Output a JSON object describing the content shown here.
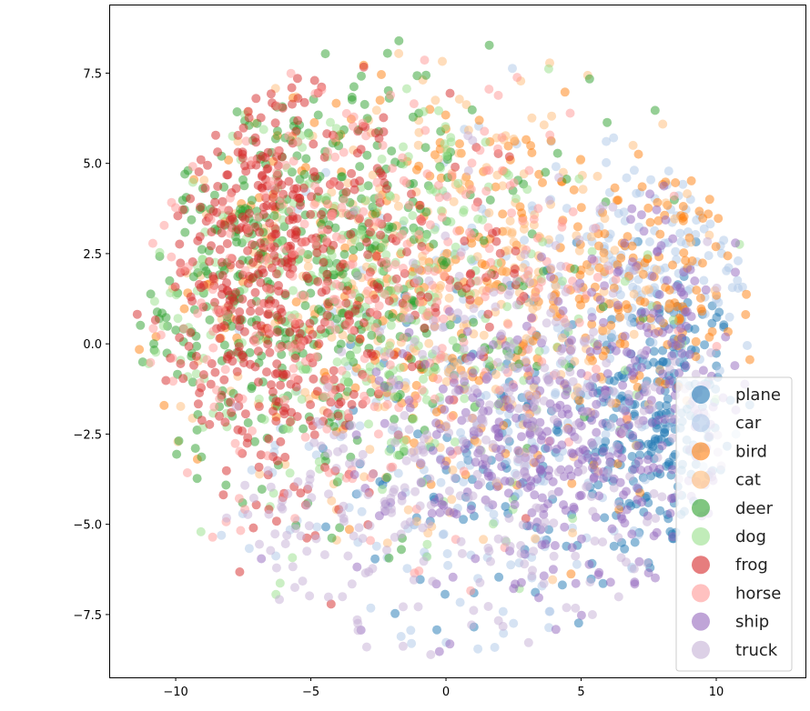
{
  "chart_data": {
    "type": "scatter",
    "title": "",
    "xlabel": "",
    "ylabel": "",
    "xlim": [
      -12.46,
      13.3
    ],
    "ylim": [
      -9.24,
      9.4
    ],
    "xticks": [
      -10,
      -5,
      0,
      5,
      10
    ],
    "xtick_labels": [
      "−10",
      "−5",
      "0",
      "5",
      "10"
    ],
    "yticks": [
      -7.5,
      -5.0,
      -2.5,
      0.0,
      2.5,
      5.0,
      7.5
    ],
    "ytick_labels": [
      "−7.5",
      "−5.0",
      "−2.5",
      "0.0",
      "2.5",
      "5.0",
      "7.5"
    ],
    "grid": false,
    "legend_position": "lower-right",
    "marker_alpha": 0.5,
    "note": "Point cloud is summarized per class as Gaussian clusters [center_x, center_y, spread_x, spread_y, count] in data units, bounded by an ellipse of radii [11.5, 8.8]",
    "bound_radii": [
      11.5,
      8.8
    ],
    "series": [
      {
        "name": "plane",
        "color": "#1f77b4",
        "clusters": [
          [
            8,
            -2,
            1.4,
            2,
            220
          ],
          [
            3,
            -3,
            3,
            2.5,
            140
          ]
        ]
      },
      {
        "name": "car",
        "color": "#aec7e8",
        "clusters": [
          [
            3,
            -2,
            4.5,
            3.8,
            280
          ],
          [
            8,
            2,
            2,
            1.5,
            100
          ]
        ]
      },
      {
        "name": "bird",
        "color": "#ff7f0e",
        "clusters": [
          [
            0,
            1.5,
            5,
            3,
            280
          ],
          [
            8,
            2,
            1.5,
            1.5,
            100
          ]
        ]
      },
      {
        "name": "cat",
        "color": "#ffbb78",
        "clusters": [
          [
            0,
            2,
            5,
            3.2,
            330
          ]
        ]
      },
      {
        "name": "deer",
        "color": "#2ca02c",
        "clusters": [
          [
            -6,
            2,
            3,
            3,
            320
          ],
          [
            -2,
            3,
            4,
            3,
            150
          ]
        ]
      },
      {
        "name": "dog",
        "color": "#98df8a",
        "clusters": [
          [
            -3,
            1,
            5,
            3,
            330
          ]
        ]
      },
      {
        "name": "frog",
        "color": "#d62728",
        "clusters": [
          [
            -7,
            3,
            2,
            2.5,
            280
          ],
          [
            -6,
            -1,
            2,
            2,
            140
          ],
          [
            -2,
            2,
            3,
            2,
            110
          ]
        ]
      },
      {
        "name": "horse",
        "color": "#ff9896",
        "clusters": [
          [
            -3,
            1.5,
            5,
            3,
            330
          ]
        ]
      },
      {
        "name": "ship",
        "color": "#9467bd",
        "clusters": [
          [
            4,
            -3,
            3,
            2,
            330
          ],
          [
            8,
            0,
            1.5,
            2,
            100
          ]
        ]
      },
      {
        "name": "truck",
        "color": "#c5b0d5",
        "clusters": [
          [
            3,
            -2.5,
            3.5,
            3,
            280
          ],
          [
            -4,
            -5,
            2,
            1.5,
            80
          ]
        ]
      }
    ]
  }
}
